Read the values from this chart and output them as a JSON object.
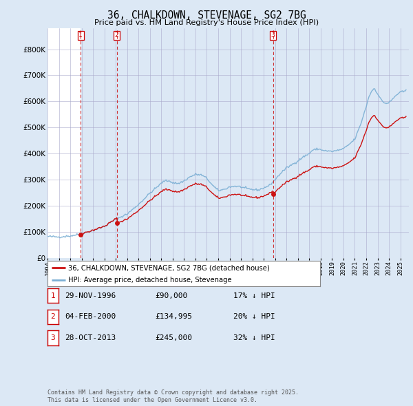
{
  "title": "36, CHALKDOWN, STEVENAGE, SG2 7BG",
  "subtitle": "Price paid vs. HM Land Registry's House Price Index (HPI)",
  "background_color": "#dce8f5",
  "plot_background": "#dce8f5",
  "plot_inner_background": "#ffffff",
  "hpi_color": "#7bafd4",
  "price_color": "#cc1111",
  "ylim": [
    0,
    880000
  ],
  "yticks": [
    0,
    100000,
    200000,
    300000,
    400000,
    500000,
    600000,
    700000,
    800000
  ],
  "ytick_labels": [
    "£0",
    "£100K",
    "£200K",
    "£300K",
    "£400K",
    "£500K",
    "£600K",
    "£700K",
    "£800K"
  ],
  "xlim_start": 1994.0,
  "xlim_end": 2025.75,
  "purchases": [
    {
      "date": 1996.91,
      "price": 90000,
      "label": "1"
    },
    {
      "date": 2000.09,
      "price": 134995,
      "label": "2"
    },
    {
      "date": 2013.82,
      "price": 245000,
      "label": "3"
    }
  ],
  "legend_entries": [
    {
      "label": "36, CHALKDOWN, STEVENAGE, SG2 7BG (detached house)",
      "color": "#cc1111"
    },
    {
      "label": "HPI: Average price, detached house, Stevenage",
      "color": "#7bafd4"
    }
  ],
  "transaction_rows": [
    {
      "num": "1",
      "date": "29-NOV-1996",
      "price": "£90,000",
      "note": "17% ↓ HPI"
    },
    {
      "num": "2",
      "date": "04-FEB-2000",
      "price": "£134,995",
      "note": "20% ↓ HPI"
    },
    {
      "num": "3",
      "date": "28-OCT-2013",
      "price": "£245,000",
      "note": "32% ↓ HPI"
    }
  ],
  "footer_text": "Contains HM Land Registry data © Crown copyright and database right 2025.\nThis data is licensed under the Open Government Licence v3.0."
}
